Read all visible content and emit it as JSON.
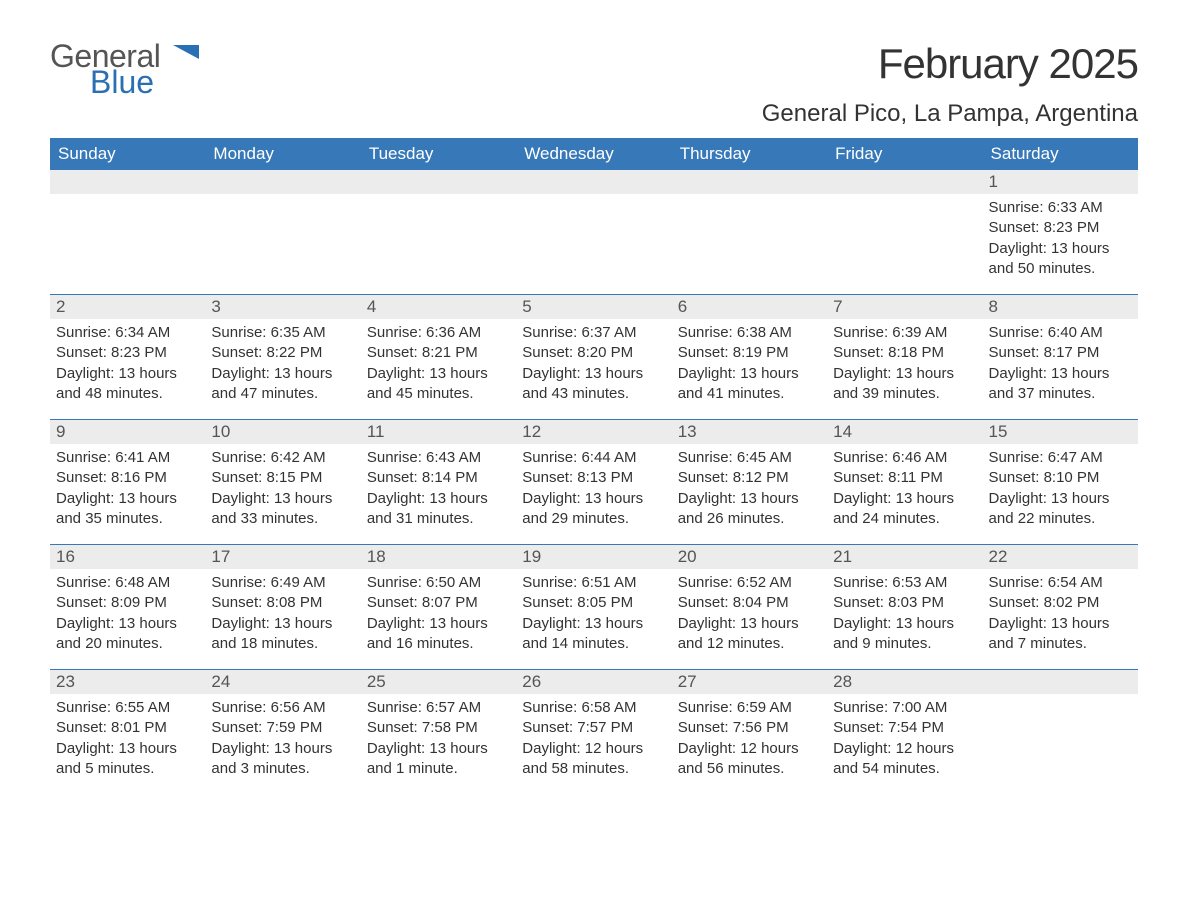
{
  "brand": {
    "general": "General",
    "blue": "Blue"
  },
  "title": "February 2025",
  "location": "General Pico, La Pampa, Argentina",
  "colors": {
    "header_bg": "#3678b8",
    "header_text": "#ffffff",
    "daynum_bg": "#ececec",
    "text": "#333333",
    "rule": "#3678b8",
    "logo_blue": "#2a6fb3"
  },
  "typography": {
    "title_fontsize": 42,
    "location_fontsize": 24,
    "header_fontsize": 17,
    "body_fontsize": 15
  },
  "weekdays": [
    "Sunday",
    "Monday",
    "Tuesday",
    "Wednesday",
    "Thursday",
    "Friday",
    "Saturday"
  ],
  "weeks": [
    [
      null,
      null,
      null,
      null,
      null,
      null,
      {
        "day": "1",
        "sunrise": "Sunrise: 6:33 AM",
        "sunset": "Sunset: 8:23 PM",
        "daylight": "Daylight: 13 hours and 50 minutes."
      }
    ],
    [
      {
        "day": "2",
        "sunrise": "Sunrise: 6:34 AM",
        "sunset": "Sunset: 8:23 PM",
        "daylight": "Daylight: 13 hours and 48 minutes."
      },
      {
        "day": "3",
        "sunrise": "Sunrise: 6:35 AM",
        "sunset": "Sunset: 8:22 PM",
        "daylight": "Daylight: 13 hours and 47 minutes."
      },
      {
        "day": "4",
        "sunrise": "Sunrise: 6:36 AM",
        "sunset": "Sunset: 8:21 PM",
        "daylight": "Daylight: 13 hours and 45 minutes."
      },
      {
        "day": "5",
        "sunrise": "Sunrise: 6:37 AM",
        "sunset": "Sunset: 8:20 PM",
        "daylight": "Daylight: 13 hours and 43 minutes."
      },
      {
        "day": "6",
        "sunrise": "Sunrise: 6:38 AM",
        "sunset": "Sunset: 8:19 PM",
        "daylight": "Daylight: 13 hours and 41 minutes."
      },
      {
        "day": "7",
        "sunrise": "Sunrise: 6:39 AM",
        "sunset": "Sunset: 8:18 PM",
        "daylight": "Daylight: 13 hours and 39 minutes."
      },
      {
        "day": "8",
        "sunrise": "Sunrise: 6:40 AM",
        "sunset": "Sunset: 8:17 PM",
        "daylight": "Daylight: 13 hours and 37 minutes."
      }
    ],
    [
      {
        "day": "9",
        "sunrise": "Sunrise: 6:41 AM",
        "sunset": "Sunset: 8:16 PM",
        "daylight": "Daylight: 13 hours and 35 minutes."
      },
      {
        "day": "10",
        "sunrise": "Sunrise: 6:42 AM",
        "sunset": "Sunset: 8:15 PM",
        "daylight": "Daylight: 13 hours and 33 minutes."
      },
      {
        "day": "11",
        "sunrise": "Sunrise: 6:43 AM",
        "sunset": "Sunset: 8:14 PM",
        "daylight": "Daylight: 13 hours and 31 minutes."
      },
      {
        "day": "12",
        "sunrise": "Sunrise: 6:44 AM",
        "sunset": "Sunset: 8:13 PM",
        "daylight": "Daylight: 13 hours and 29 minutes."
      },
      {
        "day": "13",
        "sunrise": "Sunrise: 6:45 AM",
        "sunset": "Sunset: 8:12 PM",
        "daylight": "Daylight: 13 hours and 26 minutes."
      },
      {
        "day": "14",
        "sunrise": "Sunrise: 6:46 AM",
        "sunset": "Sunset: 8:11 PM",
        "daylight": "Daylight: 13 hours and 24 minutes."
      },
      {
        "day": "15",
        "sunrise": "Sunrise: 6:47 AM",
        "sunset": "Sunset: 8:10 PM",
        "daylight": "Daylight: 13 hours and 22 minutes."
      }
    ],
    [
      {
        "day": "16",
        "sunrise": "Sunrise: 6:48 AM",
        "sunset": "Sunset: 8:09 PM",
        "daylight": "Daylight: 13 hours and 20 minutes."
      },
      {
        "day": "17",
        "sunrise": "Sunrise: 6:49 AM",
        "sunset": "Sunset: 8:08 PM",
        "daylight": "Daylight: 13 hours and 18 minutes."
      },
      {
        "day": "18",
        "sunrise": "Sunrise: 6:50 AM",
        "sunset": "Sunset: 8:07 PM",
        "daylight": "Daylight: 13 hours and 16 minutes."
      },
      {
        "day": "19",
        "sunrise": "Sunrise: 6:51 AM",
        "sunset": "Sunset: 8:05 PM",
        "daylight": "Daylight: 13 hours and 14 minutes."
      },
      {
        "day": "20",
        "sunrise": "Sunrise: 6:52 AM",
        "sunset": "Sunset: 8:04 PM",
        "daylight": "Daylight: 13 hours and 12 minutes."
      },
      {
        "day": "21",
        "sunrise": "Sunrise: 6:53 AM",
        "sunset": "Sunset: 8:03 PM",
        "daylight": "Daylight: 13 hours and 9 minutes."
      },
      {
        "day": "22",
        "sunrise": "Sunrise: 6:54 AM",
        "sunset": "Sunset: 8:02 PM",
        "daylight": "Daylight: 13 hours and 7 minutes."
      }
    ],
    [
      {
        "day": "23",
        "sunrise": "Sunrise: 6:55 AM",
        "sunset": "Sunset: 8:01 PM",
        "daylight": "Daylight: 13 hours and 5 minutes."
      },
      {
        "day": "24",
        "sunrise": "Sunrise: 6:56 AM",
        "sunset": "Sunset: 7:59 PM",
        "daylight": "Daylight: 13 hours and 3 minutes."
      },
      {
        "day": "25",
        "sunrise": "Sunrise: 6:57 AM",
        "sunset": "Sunset: 7:58 PM",
        "daylight": "Daylight: 13 hours and 1 minute."
      },
      {
        "day": "26",
        "sunrise": "Sunrise: 6:58 AM",
        "sunset": "Sunset: 7:57 PM",
        "daylight": "Daylight: 12 hours and 58 minutes."
      },
      {
        "day": "27",
        "sunrise": "Sunrise: 6:59 AM",
        "sunset": "Sunset: 7:56 PM",
        "daylight": "Daylight: 12 hours and 56 minutes."
      },
      {
        "day": "28",
        "sunrise": "Sunrise: 7:00 AM",
        "sunset": "Sunset: 7:54 PM",
        "daylight": "Daylight: 12 hours and 54 minutes."
      },
      null
    ]
  ]
}
